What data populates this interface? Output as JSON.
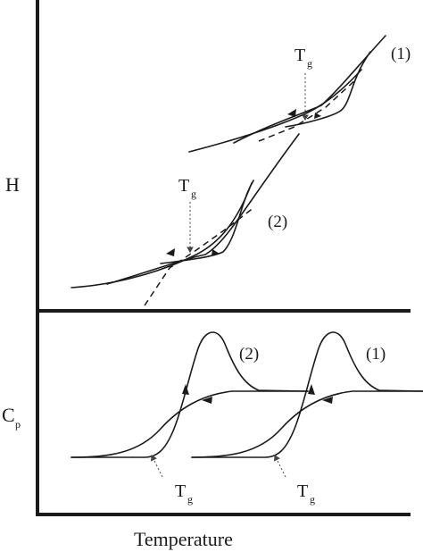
{
  "figure": {
    "top_panel": {
      "y_axis_label": "H",
      "curve_labels": [
        "(1)",
        "(2)"
      ],
      "tg_label": {
        "main": "T",
        "sub": "g"
      }
    },
    "bottom_panel": {
      "y_axis_label": {
        "main": "C",
        "sub": "p"
      },
      "curve_labels": [
        "(2)",
        "(1)"
      ],
      "tg_label": {
        "main": "T",
        "sub": "g"
      }
    },
    "x_axis_label": "Temperature"
  },
  "colors": {
    "ink": "#1a1a1a",
    "tg_marker": "#555555"
  }
}
